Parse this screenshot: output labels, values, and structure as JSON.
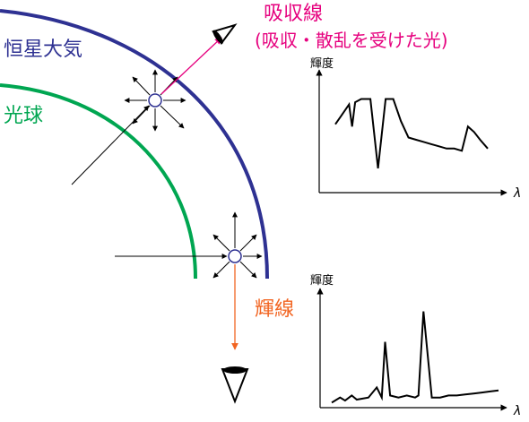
{
  "labels": {
    "atmosphere": "恒星大気",
    "photosphere": "光球",
    "absorption_title": "吸収線",
    "absorption_sub": "(吸収・散乱を受けた光)",
    "emission_title": "輝線"
  },
  "colors": {
    "atmosphere": "#2e3192",
    "photosphere": "#00a651",
    "absorption": "#e6007e",
    "emission": "#f26522",
    "ink": "#000000"
  },
  "icons": {
    "eye_top": "eye-icon",
    "eye_bottom": "eye-icon",
    "particle": "circle-particle-icon"
  },
  "chart_data": [
    {
      "type": "line",
      "name": "absorption-spectrum",
      "ylabel": "輝度",
      "xlabel": "λ",
      "x": [
        0,
        4,
        9,
        11,
        13,
        17,
        23,
        28,
        33,
        38,
        43,
        48,
        53,
        58,
        63,
        68,
        73,
        78,
        83,
        87,
        91,
        95,
        100
      ],
      "y": [
        62,
        70,
        80,
        60,
        82,
        85,
        85,
        22,
        85,
        85,
        65,
        50,
        48,
        46,
        44,
        42,
        40,
        40,
        38,
        60,
        55,
        48,
        40
      ],
      "ylim": [
        0,
        100
      ],
      "xlim": [
        0,
        100
      ],
      "axes_only": true
    },
    {
      "type": "line",
      "name": "emission-spectrum",
      "ylabel": "輝度",
      "xlabel": "λ",
      "x": [
        0,
        5,
        8,
        12,
        15,
        22,
        27,
        30,
        32,
        35,
        40,
        45,
        50,
        52,
        55,
        60,
        65,
        70,
        75,
        80,
        85,
        90,
        95,
        100
      ],
      "y": [
        5,
        10,
        7,
        12,
        8,
        10,
        20,
        10,
        65,
        12,
        10,
        12,
        10,
        12,
        95,
        10,
        10,
        12,
        12,
        13,
        14,
        15,
        16,
        17
      ],
      "ylim": [
        0,
        100
      ],
      "xlim": [
        0,
        100
      ],
      "axes_only": true
    }
  ]
}
